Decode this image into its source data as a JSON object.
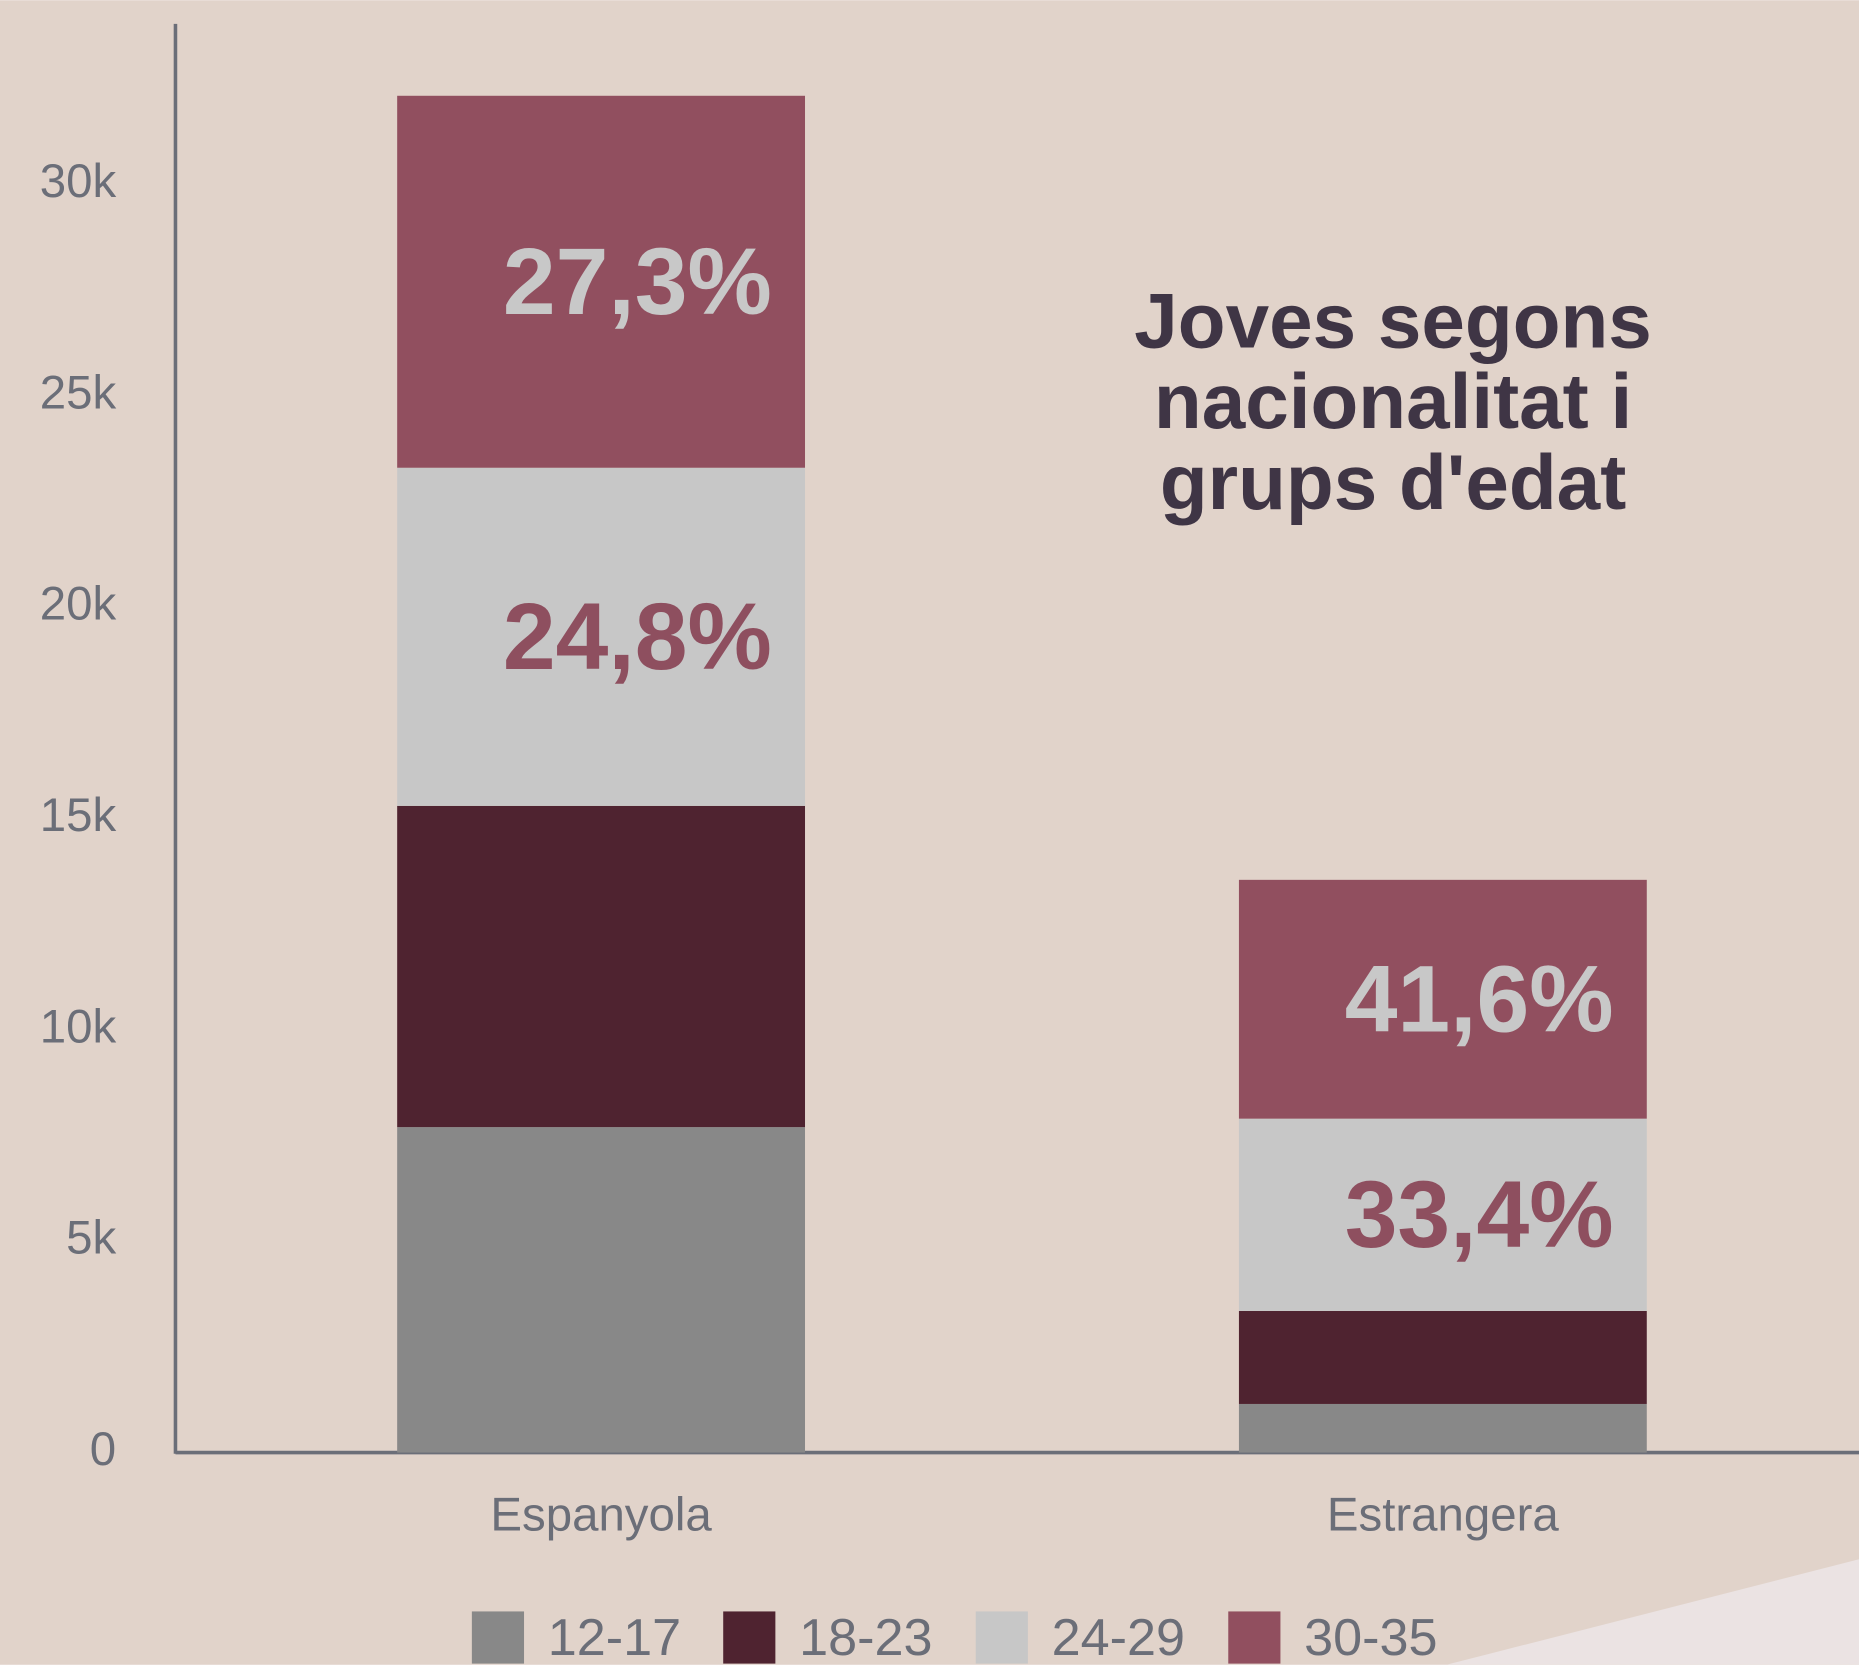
{
  "chart_data": {
    "type": "stacked_bar",
    "title": "Joves segons nacionalitat i grups d'edat",
    "categories": [
      "Espanyola",
      "Estrangera"
    ],
    "series": [
      {
        "name": "12-17",
        "color": "#888888",
        "values": [
          7700,
          1150
        ]
      },
      {
        "name": "18-23",
        "color": "#4f2330",
        "values": [
          7600,
          2200
        ]
      },
      {
        "name": "24-29",
        "color": "#c7c7c7",
        "values": [
          8000,
          4550
        ],
        "share_labels": [
          "24,8%",
          "33,4%"
        ],
        "share_label_color": "#8e4f5f"
      },
      {
        "name": "30-35",
        "color": "#914f5f",
        "values": [
          8800,
          5650
        ],
        "share_labels": [
          "27,3%",
          "41,6%"
        ],
        "share_label_color": "#c8c8c8"
      }
    ],
    "ylim": [
      0,
      33800
    ],
    "yticks": [
      0,
      {
        "value": 5000,
        "label": "5k"
      },
      {
        "value": 10000,
        "label": "10k"
      },
      {
        "value": 15000,
        "label": "15k"
      },
      {
        "value": 20000,
        "label": "20k"
      },
      {
        "value": 25000,
        "label": "25k"
      },
      {
        "value": 30000,
        "label": "30k"
      }
    ],
    "legend": "bottom"
  }
}
